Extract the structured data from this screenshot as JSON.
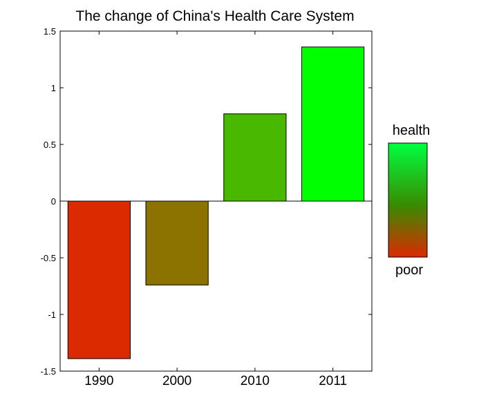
{
  "chart_data": {
    "type": "bar",
    "title": "The change of China's Health Care System",
    "categories": [
      "1990",
      "2000",
      "2010",
      "2011"
    ],
    "values": [
      -1.39,
      -0.74,
      0.77,
      1.36
    ],
    "bar_colors": [
      "#dc2a00",
      "#8c7300",
      "#48b800",
      "#00ff00"
    ],
    "ylim": [
      -1.5,
      1.5
    ],
    "yticks": [
      -1.5,
      -1,
      -0.5,
      0,
      0.5,
      1,
      1.5
    ],
    "ytick_labels": [
      "-1.5",
      "-1",
      "-0.5",
      "0",
      "0.5",
      "1",
      "1.5"
    ],
    "xlabel": "",
    "ylabel": "",
    "grid": false,
    "colorbar": {
      "top_label": "health",
      "bottom_label": "poor",
      "top_color": "#00ff40",
      "mid_color": "#3a8a00",
      "bottom_color": "#dc2a00"
    }
  }
}
